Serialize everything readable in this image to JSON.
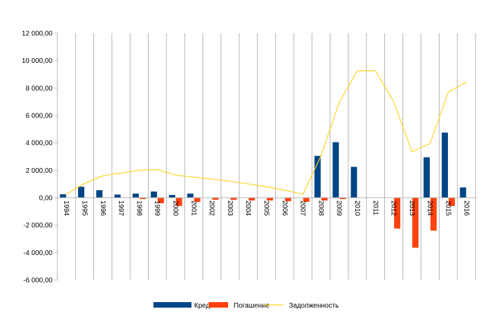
{
  "chart_data": {
    "type": "bar",
    "categories": [
      "1994",
      "1995",
      "1996",
      "1997",
      "1998",
      "1999",
      "2000",
      "2001",
      "2002",
      "2003",
      "2004",
      "2005",
      "2006",
      "2007",
      "2008",
      "2009",
      "2010",
      "2011",
      "2012",
      "2013",
      "2014",
      "2015",
      "2016"
    ],
    "series": [
      {
        "name": "Кредиты",
        "type": "bar",
        "color": "#004586",
        "values": [
          250,
          800,
          550,
          230,
          300,
          450,
          200,
          300,
          0,
          0,
          0,
          0,
          0,
          0,
          3050,
          4050,
          2250,
          0,
          0,
          0,
          2950,
          4750,
          750
        ]
      },
      {
        "name": "Погашение",
        "type": "bar",
        "color": "#ff420e",
        "values": [
          0,
          0,
          0,
          0,
          -100,
          -400,
          -600,
          -300,
          -150,
          -150,
          -200,
          -200,
          -250,
          -300,
          -200,
          -100,
          0,
          0,
          -2250,
          -3650,
          -2400,
          -600,
          0
        ]
      },
      {
        "name": "Задолженность",
        "type": "line",
        "color": "#ffd320",
        "values": [
          250,
          1050,
          1600,
          1800,
          2000,
          2050,
          1650,
          1500,
          1350,
          1200,
          1000,
          800,
          550,
          250,
          3050,
          6950,
          9250,
          9250,
          7000,
          3350,
          3950,
          7700,
          8450
        ]
      }
    ],
    "yticks": [
      "12 000,00",
      "10 000,00",
      "8 000,00",
      "6 000,00",
      "4 000,00",
      "2 000,00",
      "0,00",
      "-2 000,00",
      "-4 000,00",
      "-6 000,00"
    ],
    "ylim": [
      -6000,
      12000
    ],
    "grid": "vertical",
    "legend": "bottom"
  }
}
